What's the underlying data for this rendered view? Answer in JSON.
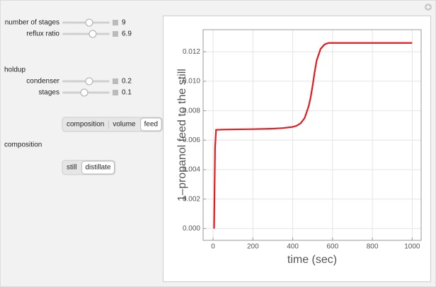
{
  "controls": {
    "sliders": [
      {
        "label": "number of stages",
        "value": 9
      },
      {
        "label": "reflux ratio",
        "value": 6.9
      }
    ],
    "holdup_heading": "holdup",
    "holdup_sliders": [
      {
        "label": "condenser",
        "value": 0.2
      },
      {
        "label": "stages",
        "value": 0.1
      }
    ],
    "plot_buttons": [
      "composition",
      "volume",
      "feed"
    ],
    "plot_selected": 2,
    "composition_heading": "composition",
    "composition_buttons": [
      "still",
      "distillate"
    ],
    "composition_selected": 1
  },
  "chart_data": {
    "type": "line",
    "xlabel": "time (sec)",
    "ylabel": "1–propanol feed to the still",
    "x": [
      5,
      10,
      15,
      50,
      100,
      200,
      300,
      350,
      400,
      420,
      440,
      460,
      480,
      490,
      500,
      510,
      520,
      540,
      560,
      580,
      600,
      700,
      800,
      900,
      1000
    ],
    "series": [
      {
        "color": "#e41a1c",
        "values": [
          0,
          0.0055,
          0.0067,
          0.00672,
          0.00673,
          0.00675,
          0.00678,
          0.00682,
          0.0069,
          0.00698,
          0.00715,
          0.0075,
          0.0083,
          0.0089,
          0.0097,
          0.0106,
          0.0114,
          0.0122,
          0.0125,
          0.0126,
          0.0126,
          0.0126,
          0.0126,
          0.0126,
          0.0126
        ]
      }
    ],
    "xlim": [
      -50,
      1045
    ],
    "ylim": [
      -0.0008,
      0.0135
    ],
    "xticks": [
      0,
      200,
      400,
      600,
      800,
      1000
    ],
    "yticks": [
      {
        "value": 0,
        "label": "0.000"
      },
      {
        "value": 0.002,
        "label": "0.002"
      },
      {
        "value": 0.004,
        "label": "0.004"
      },
      {
        "value": 0.006,
        "label": "0.006"
      },
      {
        "value": 0.008,
        "label": "0.008"
      },
      {
        "value": 0.01,
        "label": "0.010"
      },
      {
        "value": 0.012,
        "label": "0.012"
      }
    ],
    "grid": true
  }
}
